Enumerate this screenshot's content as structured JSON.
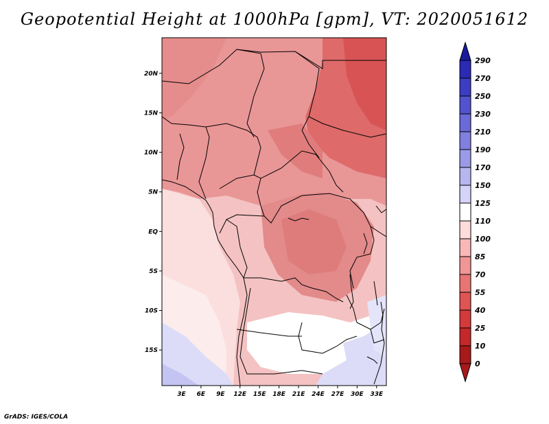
{
  "title": "Geopotential Height at 1000hPa [gpm], VT: 2020051612",
  "credit": "GrADS: IGES/COLA",
  "map": {
    "lat_labels": [
      "20N",
      "15N",
      "10N",
      "5N",
      "EQ",
      "5S",
      "10S",
      "15S"
    ],
    "lat_values": [
      20,
      15,
      10,
      5,
      0,
      -5,
      -10,
      -15
    ],
    "lon_labels": [
      "3E",
      "6E",
      "9E",
      "12E",
      "15E",
      "18E",
      "21E",
      "24E",
      "27E",
      "30E",
      "33E"
    ],
    "lon_values": [
      3,
      6,
      9,
      12,
      15,
      18,
      21,
      24,
      27,
      30,
      33
    ]
  },
  "colorbar": {
    "labels": [
      "290",
      "270",
      "250",
      "230",
      "210",
      "190",
      "170",
      "150",
      "125",
      "110",
      "100",
      "85",
      "70",
      "55",
      "40",
      "25",
      "10",
      "0"
    ],
    "colors": [
      "#1b1b9e",
      "#2a2ab4",
      "#3d3dc4",
      "#5353d0",
      "#6a6ad8",
      "#8080e0",
      "#9a9ae8",
      "#b6b6f0",
      "#d4d4f8",
      "#ffffff",
      "#fddcdc",
      "#f8b8b8",
      "#f09696",
      "#e87474",
      "#e05454",
      "#d43a3a",
      "#c42828",
      "#a81a1a"
    ]
  }
}
